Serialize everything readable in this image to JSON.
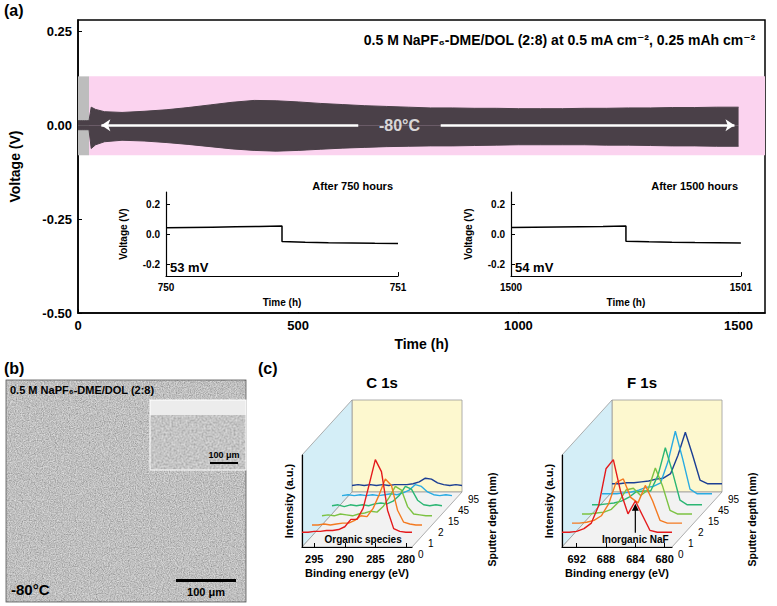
{
  "chart_data": [
    {
      "type": "line",
      "panel": "(a)",
      "title": "0.5 M NaPF₆-DME/DOL (2:8) at 0.5 mA cm⁻², 0.25 mAh cm⁻²",
      "x_label": "Time (h)",
      "y_label": "Voltage (V)",
      "x": [
        0,
        5,
        10,
        15,
        20,
        25,
        30,
        40,
        60,
        100,
        150,
        200,
        250,
        300,
        350,
        400,
        450,
        500,
        550,
        600,
        650,
        700,
        750,
        800,
        850,
        900,
        950,
        1000,
        1050,
        1100,
        1150,
        1200,
        1250,
        1300,
        1350,
        1400,
        1450,
        1500
      ],
      "series": [
        {
          "color": "#4a4048",
          "upper": [
            0.012,
            0.012,
            0.012,
            0.012,
            0.012,
            0.012,
            0.048,
            0.042,
            0.036,
            0.034,
            0.037,
            0.041,
            0.047,
            0.054,
            0.061,
            0.066,
            0.065,
            0.062,
            0.058,
            0.055,
            0.052,
            0.05,
            0.048,
            0.046,
            0.046,
            0.045,
            0.045,
            0.044,
            0.044,
            0.044,
            0.045,
            0.045,
            0.046,
            0.046,
            0.047,
            0.047,
            0.048,
            0.048
          ],
          "lower": [
            -0.012,
            -0.012,
            -0.012,
            -0.012,
            -0.012,
            -0.012,
            -0.062,
            -0.052,
            -0.044,
            -0.04,
            -0.042,
            -0.046,
            -0.051,
            -0.057,
            -0.063,
            -0.067,
            -0.069,
            -0.067,
            -0.064,
            -0.061,
            -0.059,
            -0.057,
            -0.056,
            -0.055,
            -0.055,
            -0.054,
            -0.053,
            -0.052,
            -0.052,
            -0.052,
            -0.052,
            -0.053,
            -0.053,
            -0.054,
            -0.055,
            -0.055,
            -0.056,
            -0.056
          ]
        }
      ],
      "bands": [
        {
          "x": [
            0,
            25
          ],
          "y": [
            -0.08,
            0.13
          ],
          "color": "#bdbdbd"
        },
        {
          "x": [
            25,
            1560
          ],
          "y": [
            -0.08,
            0.13
          ],
          "color": "#fbd3ef"
        }
      ],
      "annotations": [
        {
          "text": "-80°C",
          "x": 730,
          "y": 0
        }
      ],
      "xlim": [
        0,
        1560
      ],
      "xticks": [
        0,
        500,
        1000,
        1500
      ],
      "ylim": [
        -0.5,
        0.28
      ],
      "yticks": [
        {
          "value": -0.5,
          "label": "-0.50"
        },
        -0.25,
        {
          "value": 0,
          "label": "0.00"
        },
        0.25
      ],
      "grid": false,
      "insets": [
        {
          "type": "line",
          "title": "After 750 hours",
          "annotation": "53 mV",
          "x_label": "Time (h)",
          "y_label": "Voltage (V)",
          "color": "#000000",
          "x": [
            750,
            750.1,
            750.2,
            750.3,
            750.4,
            750.5,
            750.5,
            750.6,
            750.7,
            750.8,
            750.9,
            751
          ],
          "values": [
            0.042,
            0.044,
            0.046,
            0.048,
            0.05,
            0.053,
            -0.05,
            -0.055,
            -0.058,
            -0.06,
            -0.062,
            -0.063
          ],
          "xlim": [
            750,
            751
          ],
          "xticks": [
            750,
            751
          ],
          "ylim": [
            -0.28,
            0.28
          ],
          "yticks": [
            -0.2,
            {
              "value": 0,
              "label": "0.0"
            },
            0.2
          ],
          "grid": false
        },
        {
          "type": "line",
          "title": "After 1500 hours",
          "annotation": "54 mV",
          "x_label": "Time (h)",
          "y_label": "Voltage (V)",
          "color": "#000000",
          "x": [
            1500,
            1500.1,
            1500.2,
            1500.3,
            1500.4,
            1500.5,
            1500.5,
            1500.6,
            1500.7,
            1500.8,
            1500.9,
            1501
          ],
          "values": [
            0.043,
            0.045,
            0.047,
            0.049,
            0.051,
            0.054,
            -0.048,
            -0.052,
            -0.055,
            -0.057,
            -0.058,
            -0.059
          ],
          "xlim": [
            1500,
            1501
          ],
          "xticks": [
            1500,
            1501
          ],
          "ylim": [
            -0.28,
            0.28
          ],
          "yticks": [
            -0.2,
            {
              "value": 0,
              "label": "0.0"
            },
            0.2
          ],
          "grid": false
        }
      ]
    },
    {
      "type": "waterfall",
      "panel": "(c)",
      "title": "C 1s",
      "x_label": "Binding energy (eV)",
      "y_label": "Intensity (a.u.)",
      "z_label": "Sputter depth (nm)",
      "x": [
        297,
        296,
        295,
        294,
        293,
        292,
        291,
        290,
        289,
        288,
        287,
        286,
        285,
        284,
        283,
        282,
        281,
        280,
        279
      ],
      "series": [
        {
          "depth": 0,
          "color": "#e41a1c",
          "values": [
            0.16,
            0.16,
            0.17,
            0.17,
            0.18,
            0.18,
            0.19,
            0.22,
            0.3,
            0.3,
            0.42,
            0.68,
            0.95,
            0.82,
            0.4,
            0.2,
            0.17,
            0.16,
            0.16
          ]
        },
        {
          "depth": 1,
          "color": "#f47a20",
          "values": [
            0.12,
            0.12,
            0.13,
            0.12,
            0.13,
            0.14,
            0.14,
            0.17,
            0.22,
            0.21,
            0.3,
            0.45,
            0.62,
            0.55,
            0.28,
            0.15,
            0.13,
            0.12,
            0.12
          ]
        },
        {
          "depth": 2,
          "color": "#7cc242",
          "values": [
            0.1,
            0.11,
            0.1,
            0.12,
            0.11,
            0.1,
            0.12,
            0.13,
            0.15,
            0.14,
            0.2,
            0.3,
            0.42,
            0.38,
            0.2,
            0.12,
            0.11,
            0.1,
            0.1
          ]
        },
        {
          "depth": 15,
          "color": "#2bb673",
          "values": [
            0.09,
            0.1,
            0.08,
            0.1,
            0.09,
            0.1,
            0.09,
            0.11,
            0.12,
            0.11,
            0.14,
            0.2,
            0.3,
            0.27,
            0.15,
            0.1,
            0.09,
            0.1,
            0.09
          ]
        },
        {
          "depth": 45,
          "color": "#29abe2",
          "values": [
            0.08,
            0.09,
            0.08,
            0.09,
            0.08,
            0.09,
            0.08,
            0.09,
            0.1,
            0.09,
            0.11,
            0.14,
            0.2,
            0.18,
            0.12,
            0.09,
            0.08,
            0.09,
            0.08
          ]
        },
        {
          "depth": 95,
          "color": "#1c3f94",
          "values": [
            0.07,
            0.08,
            0.07,
            0.08,
            0.07,
            0.08,
            0.07,
            0.08,
            0.08,
            0.08,
            0.09,
            0.11,
            0.15,
            0.14,
            0.1,
            0.08,
            0.07,
            0.08,
            0.07
          ]
        }
      ],
      "annotations": [
        {
          "text": "Organic species",
          "x": 287,
          "y": 0.08
        }
      ],
      "xlim": [
        297,
        279
      ],
      "xticks": [
        295,
        290,
        285,
        280
      ],
      "ylim": [
        0,
        1
      ],
      "tick_labels": "x",
      "grid": false
    },
    {
      "type": "waterfall",
      "title": "F 1s",
      "x_label": "Binding energy (eV)",
      "y_label": "Intensity (a.u.)",
      "z_label": "Sputter depth (nm)",
      "x": [
        694,
        693,
        692,
        691,
        690,
        689,
        688,
        687,
        686,
        685,
        684,
        683,
        682,
        681,
        680,
        679
      ],
      "series": [
        {
          "depth": 0,
          "color": "#e41a1c",
          "values": [
            0.16,
            0.16,
            0.17,
            0.2,
            0.26,
            0.45,
            0.85,
            0.95,
            0.6,
            0.36,
            0.5,
            0.34,
            0.18,
            0.16,
            0.16,
            0.16
          ]
        },
        {
          "depth": 1,
          "color": "#f47a20",
          "values": [
            0.14,
            0.14,
            0.15,
            0.17,
            0.22,
            0.35,
            0.58,
            0.62,
            0.42,
            0.36,
            0.55,
            0.38,
            0.17,
            0.14,
            0.14,
            0.14
          ]
        },
        {
          "depth": 2,
          "color": "#7cc242",
          "values": [
            0.12,
            0.12,
            0.13,
            0.14,
            0.17,
            0.25,
            0.38,
            0.4,
            0.32,
            0.38,
            0.62,
            0.42,
            0.16,
            0.12,
            0.12,
            0.12
          ]
        },
        {
          "depth": 15,
          "color": "#2bb673",
          "values": [
            0.1,
            0.1,
            0.11,
            0.12,
            0.14,
            0.18,
            0.24,
            0.25,
            0.25,
            0.42,
            0.72,
            0.45,
            0.15,
            0.1,
            0.1,
            0.1
          ]
        },
        {
          "depth": 45,
          "color": "#29abe2",
          "values": [
            0.1,
            0.1,
            0.1,
            0.11,
            0.12,
            0.14,
            0.17,
            0.18,
            0.22,
            0.45,
            0.78,
            0.48,
            0.15,
            0.1,
            0.1,
            0.1
          ]
        },
        {
          "depth": 95,
          "color": "#1c3f94",
          "values": [
            0.09,
            0.09,
            0.1,
            0.1,
            0.11,
            0.12,
            0.14,
            0.15,
            0.2,
            0.4,
            0.65,
            0.4,
            0.13,
            0.09,
            0.09,
            0.09
          ]
        }
      ],
      "annotations": [
        {
          "text": "Inorganic NaF",
          "x": 684,
          "y": 0.08,
          "arrow_to": [
            684,
            0.48
          ]
        }
      ],
      "xlim": [
        694,
        679
      ],
      "xticks": [
        692,
        688,
        684,
        680
      ],
      "ylim": [
        0,
        1
      ],
      "tick_labels": "x",
      "grid": false
    }
  ],
  "image_panel": {
    "panel": "(b)",
    "label": "0.5 M NaPF₆-DME/DOL (2:8)",
    "temperature": "-80°C",
    "scale_bar": "100 μm",
    "inset_scale_bar": "100 μm"
  }
}
